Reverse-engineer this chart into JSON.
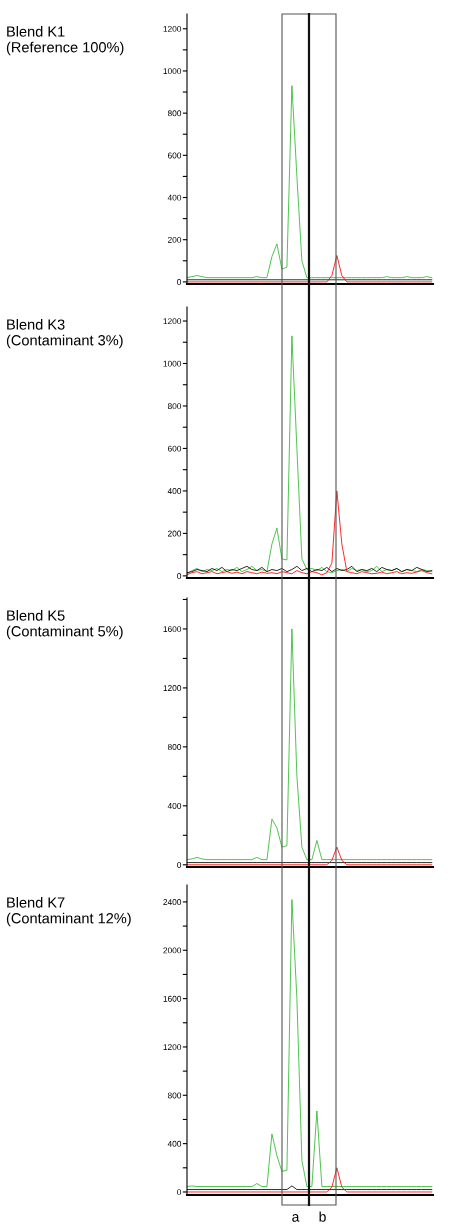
{
  "chart_data": [
    {
      "type": "line",
      "title": "Blend K1\n(Reference 100%)",
      "tick_labels": "y",
      "categories": [
        null,
        null,
        null,
        null,
        null,
        null,
        null,
        null,
        null,
        null,
        null,
        null,
        null,
        null,
        null,
        null,
        null,
        null,
        null,
        null,
        null,
        null,
        null,
        null,
        null,
        null,
        null,
        null,
        null,
        null,
        null,
        null,
        null,
        null,
        null,
        null,
        null,
        null,
        null,
        null,
        null,
        null,
        null,
        null,
        null,
        null,
        null,
        null,
        null,
        null
      ],
      "ylim": [
        -10,
        1270
      ],
      "yticks": [
        0,
        {
          "value": 100,
          "label": null
        },
        200,
        {
          "value": 300,
          "label": null
        },
        400,
        {
          "value": 500,
          "label": null
        },
        600,
        {
          "value": 700,
          "label": null
        },
        800,
        {
          "value": 900,
          "label": null
        },
        1000,
        {
          "value": 1100,
          "label": null
        },
        1200
      ],
      "series": [
        {
          "color": "#2db82d",
          "values": [
            20,
            25,
            30,
            25,
            20,
            20,
            20,
            20,
            20,
            20,
            20,
            20,
            20,
            20,
            25,
            20,
            20,
            120,
            180,
            60,
            70,
            930,
            500,
            100,
            20,
            20,
            20,
            20,
            20,
            20,
            20,
            20,
            20,
            20,
            20,
            20,
            20,
            20,
            20,
            20,
            25,
            20,
            20,
            20,
            25,
            20,
            20,
            20,
            25,
            20
          ]
        },
        {
          "color": "#000000",
          "values": [
            10,
            10,
            10,
            10,
            10,
            10,
            10,
            10,
            10,
            10,
            10,
            10,
            10,
            10,
            10,
            10,
            10,
            10,
            10,
            10,
            10,
            10,
            10,
            10,
            10,
            10,
            10,
            10,
            10,
            10,
            10,
            10,
            10,
            10,
            10,
            10,
            10,
            10,
            10,
            10,
            10,
            10,
            10,
            10,
            10,
            10,
            10,
            10,
            10,
            10
          ]
        },
        {
          "color": "#ff0000",
          "values": [
            0,
            0,
            0,
            0,
            0,
            0,
            0,
            0,
            0,
            0,
            0,
            0,
            0,
            0,
            0,
            0,
            0,
            0,
            0,
            0,
            0,
            0,
            0,
            0,
            0,
            0,
            0,
            0,
            0,
            30,
            125,
            30,
            0,
            0,
            0,
            0,
            0,
            0,
            0,
            0,
            0,
            0,
            0,
            0,
            0,
            0,
            0,
            0,
            0,
            0
          ]
        }
      ]
    },
    {
      "type": "line",
      "title": "Blend K3\n(Contaminant 3%)",
      "tick_labels": "y",
      "categories": [
        null,
        null,
        null,
        null,
        null,
        null,
        null,
        null,
        null,
        null,
        null,
        null,
        null,
        null,
        null,
        null,
        null,
        null,
        null,
        null,
        null,
        null,
        null,
        null,
        null,
        null,
        null,
        null,
        null,
        null,
        null,
        null,
        null,
        null,
        null,
        null,
        null,
        null,
        null,
        null,
        null,
        null,
        null,
        null,
        null,
        null,
        null,
        null,
        null,
        null
      ],
      "ylim": [
        -10,
        1266
      ],
      "yticks": [
        0,
        {
          "value": 100,
          "label": null
        },
        200,
        {
          "value": 300,
          "label": null
        },
        400,
        {
          "value": 500,
          "label": null
        },
        600,
        {
          "value": 700,
          "label": null
        },
        800,
        {
          "value": 900,
          "label": null
        },
        1000,
        {
          "value": 1100,
          "label": null
        },
        1200
      ],
      "series": [
        {
          "color": "#2db82d",
          "values": [
            10,
            25,
            35,
            20,
            30,
            25,
            35,
            20,
            30,
            25,
            40,
            20,
            30,
            45,
            25,
            30,
            20,
            150,
            225,
            80,
            75,
            1130,
            600,
            80,
            30,
            35,
            25,
            40,
            20,
            15,
            25,
            30,
            20,
            35,
            25,
            30,
            20,
            25,
            45,
            20,
            30,
            25,
            35,
            20,
            30,
            25,
            20,
            30,
            25,
            20
          ]
        },
        {
          "color": "#000000",
          "values": [
            15,
            20,
            30,
            25,
            20,
            35,
            25,
            40,
            20,
            30,
            25,
            35,
            45,
            30,
            25,
            40,
            20,
            30,
            25,
            35,
            20,
            30,
            45,
            25,
            35,
            20,
            30,
            25,
            40,
            20,
            35,
            25,
            30,
            45,
            20,
            30,
            25,
            35,
            20,
            40,
            30,
            25,
            35,
            20,
            30,
            25,
            40,
            30,
            20,
            25
          ]
        },
        {
          "color": "#ff0000",
          "values": [
            5,
            15,
            20,
            10,
            15,
            20,
            10,
            15,
            20,
            12,
            18,
            10,
            20,
            15,
            10,
            18,
            12,
            15,
            10,
            20,
            15,
            10,
            25,
            15,
            10,
            20,
            15,
            5,
            15,
            60,
            400,
            150,
            20,
            15,
            10,
            20,
            15,
            10,
            12,
            18,
            10,
            15,
            20,
            10,
            15,
            12,
            18,
            25,
            15,
            10
          ]
        }
      ]
    },
    {
      "type": "line",
      "title": "Blend K5\n(Contaminant 5%)",
      "tick_labels": "y",
      "categories": [
        null,
        null,
        null,
        null,
        null,
        null,
        null,
        null,
        null,
        null,
        null,
        null,
        null,
        null,
        null,
        null,
        null,
        null,
        null,
        null,
        null,
        null,
        null,
        null,
        null,
        null,
        null,
        null,
        null,
        null,
        null,
        null,
        null,
        null,
        null,
        null,
        null,
        null,
        null,
        null,
        null,
        null,
        null,
        null,
        null,
        null,
        null,
        null,
        null,
        null
      ],
      "ylim": [
        -15,
        1810
      ],
      "yticks": [
        0,
        {
          "value": 200,
          "label": null
        },
        400,
        {
          "value": 600,
          "label": null
        },
        800,
        {
          "value": 1000,
          "label": null
        },
        1200,
        {
          "value": 1400,
          "label": null
        },
        1600,
        {
          "value": 1800,
          "label": null
        }
      ],
      "series": [
        {
          "color": "#2db82d",
          "values": [
            35,
            40,
            50,
            40,
            35,
            35,
            35,
            35,
            35,
            35,
            35,
            35,
            35,
            35,
            50,
            35,
            35,
            310,
            250,
            120,
            130,
            1600,
            600,
            120,
            35,
            35,
            165,
            35,
            35,
            35,
            35,
            35,
            35,
            35,
            35,
            35,
            35,
            35,
            35,
            35,
            35,
            35,
            35,
            35,
            35,
            35,
            35,
            35,
            35,
            35
          ]
        },
        {
          "color": "#000000",
          "values": [
            15,
            15,
            15,
            15,
            15,
            15,
            15,
            15,
            15,
            15,
            15,
            15,
            15,
            15,
            15,
            15,
            15,
            15,
            15,
            15,
            15,
            15,
            15,
            15,
            15,
            15,
            15,
            15,
            15,
            15,
            15,
            15,
            15,
            15,
            15,
            15,
            15,
            15,
            15,
            15,
            15,
            15,
            15,
            15,
            15,
            15,
            15,
            15,
            15,
            15
          ]
        },
        {
          "color": "#ff0000",
          "values": [
            0,
            0,
            0,
            0,
            0,
            0,
            0,
            0,
            0,
            0,
            0,
            0,
            0,
            0,
            0,
            0,
            0,
            0,
            0,
            0,
            0,
            0,
            0,
            0,
            0,
            0,
            0,
            0,
            0,
            30,
            120,
            30,
            0,
            0,
            0,
            0,
            0,
            0,
            0,
            0,
            0,
            0,
            0,
            0,
            0,
            0,
            0,
            0,
            0,
            0
          ]
        }
      ]
    },
    {
      "type": "line",
      "title": "Blend K7\n(Contaminant 12%)",
      "tick_labels": "y",
      "annotations": [
        "a",
        "b"
      ],
      "categories": [
        null,
        null,
        null,
        null,
        null,
        null,
        null,
        null,
        null,
        null,
        null,
        null,
        null,
        null,
        null,
        null,
        null,
        null,
        null,
        null,
        null,
        null,
        null,
        null,
        null,
        null,
        null,
        null,
        null,
        null,
        null,
        null,
        null,
        null,
        null,
        null,
        null,
        null,
        null,
        null,
        null,
        null,
        null,
        null,
        null,
        null,
        null,
        null,
        null,
        null
      ],
      "ylim": [
        -25,
        2540
      ],
      "yticks": [
        0,
        {
          "value": 200,
          "label": null
        },
        400,
        {
          "value": 600,
          "label": null
        },
        800,
        {
          "value": 1000,
          "label": null
        },
        1200,
        {
          "value": 1400,
          "label": null
        },
        1600,
        {
          "value": 1800,
          "label": null
        },
        2000,
        {
          "value": 2200,
          "label": null
        },
        2400
      ],
      "series": [
        {
          "color": "#2db82d",
          "values": [
            45,
            50,
            45,
            45,
            45,
            45,
            45,
            45,
            45,
            45,
            45,
            45,
            45,
            45,
            70,
            45,
            45,
            480,
            300,
            170,
            180,
            2420,
            1600,
            260,
            45,
            45,
            670,
            45,
            45,
            45,
            45,
            45,
            45,
            45,
            45,
            45,
            45,
            45,
            45,
            45,
            45,
            45,
            45,
            45,
            45,
            45,
            45,
            45,
            45,
            45
          ]
        },
        {
          "color": "#000000",
          "values": [
            20,
            20,
            20,
            20,
            20,
            20,
            20,
            20,
            20,
            20,
            20,
            20,
            20,
            20,
            20,
            20,
            20,
            20,
            20,
            20,
            20,
            50,
            20,
            20,
            20,
            20,
            20,
            20,
            20,
            20,
            20,
            20,
            20,
            20,
            20,
            20,
            20,
            20,
            20,
            20,
            20,
            20,
            20,
            20,
            20,
            20,
            20,
            20,
            20,
            20
          ]
        },
        {
          "color": "#ff0000",
          "values": [
            0,
            0,
            0,
            0,
            0,
            0,
            0,
            0,
            0,
            0,
            0,
            0,
            0,
            0,
            0,
            0,
            0,
            0,
            0,
            0,
            0,
            0,
            0,
            0,
            0,
            0,
            0,
            0,
            0,
            40,
            200,
            40,
            0,
            0,
            0,
            0,
            0,
            0,
            0,
            0,
            0,
            0,
            0,
            0,
            0,
            0,
            0,
            0,
            0,
            0
          ]
        }
      ]
    }
  ]
}
